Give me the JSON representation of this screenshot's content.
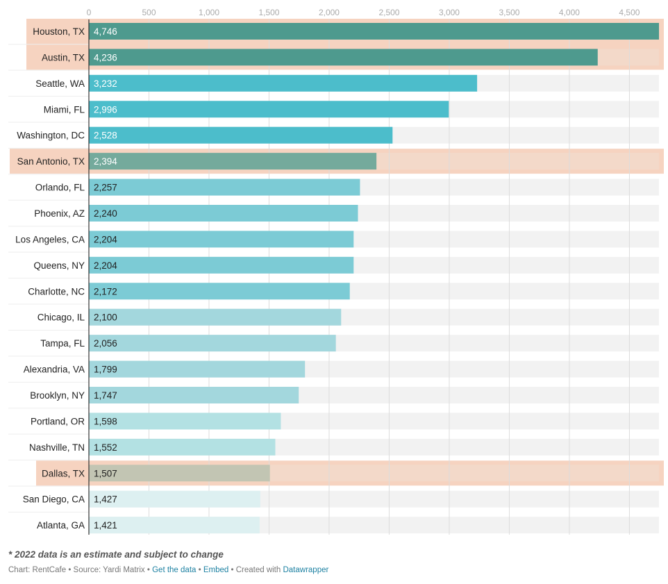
{
  "chart_data": {
    "type": "bar",
    "orientation": "horizontal",
    "x_ticks": [
      "0",
      "500",
      "1,000",
      "1,500",
      "2,000",
      "2,500",
      "3,000",
      "3,500",
      "4,000",
      "4,500"
    ],
    "x_tick_values": [
      0,
      500,
      1000,
      1500,
      2000,
      2500,
      3000,
      3500,
      4000,
      4500
    ],
    "xlim": [
      0,
      4746
    ],
    "grid": true,
    "categories": [
      "Houston, TX",
      "Austin, TX",
      "Seattle, WA",
      "Miami, FL",
      "Washington, DC",
      "San Antonio, TX",
      "Orlando, FL",
      "Phoenix, AZ",
      "Los Angeles, CA",
      "Queens, NY",
      "Charlotte, NC",
      "Chicago, IL",
      "Tampa, FL",
      "Alexandria, VA",
      "Brooklyn, NY",
      "Portland, OR",
      "Nashville, TN",
      "Dallas, TX",
      "San Diego, CA",
      "Atlanta, GA"
    ],
    "values": [
      4746,
      4236,
      3232,
      2996,
      2528,
      2394,
      2257,
      2240,
      2204,
      2204,
      2172,
      2100,
      2056,
      1799,
      1747,
      1598,
      1552,
      1507,
      1427,
      1421
    ],
    "value_labels": [
      "4,746",
      "4,236",
      "3,232",
      "2,996",
      "2,528",
      "2,394",
      "2,257",
      "2,240",
      "2,204",
      "2,204",
      "2,172",
      "2,100",
      "2,056",
      "1,799",
      "1,747",
      "1,598",
      "1,552",
      "1,507",
      "1,427",
      "1,421"
    ],
    "highlighted": [
      "Houston, TX",
      "Austin, TX",
      "San Antonio, TX",
      "Dallas, TX"
    ],
    "bar_colors": [
      "#4e9a8e",
      "#4e9a8e",
      "#4cbdcb",
      "#4cbdcb",
      "#4cbdcb",
      "#74aa9c",
      "#7ccbd5",
      "#7ccbd5",
      "#7ccbd5",
      "#7ccbd5",
      "#7ccbd5",
      "#a3d7dd",
      "#a3d7dd",
      "#a3d7dd",
      "#a3d7dd",
      "#b3e1e3",
      "#b3e1e3",
      "#c2c5b3",
      "#ddf0f1",
      "#ddf0f1"
    ],
    "value_label_colors": [
      "#ffffff",
      "#ffffff",
      "#ffffff",
      "#ffffff",
      "#ffffff",
      "#ffffff",
      "#222222",
      "#222222",
      "#222222",
      "#222222",
      "#222222",
      "#222222",
      "#222222",
      "#222222",
      "#222222",
      "#222222",
      "#222222",
      "#222222",
      "#222222",
      "#222222"
    ],
    "track_color": "#f2f2f2",
    "highlight_color": "#f6d3c0"
  },
  "footnote": "* 2022 data is an estimate and subject to change",
  "credits": {
    "chart": "Chart: RentCafe",
    "source": "Source: Yardi Matrix",
    "get_data": "Get the data",
    "embed": "Embed",
    "created_with": "Created with",
    "tool": "Datawrapper",
    "separator": "•"
  }
}
